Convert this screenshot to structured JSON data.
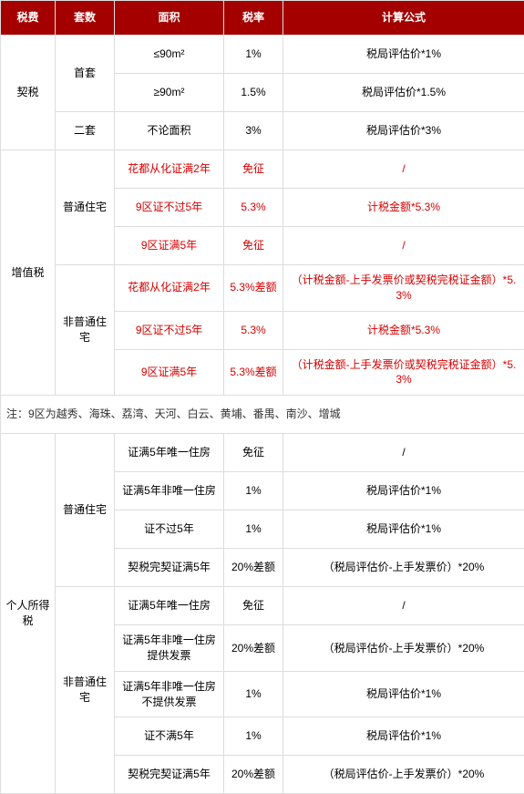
{
  "headers": [
    "税费",
    "套数",
    "面积",
    "税率",
    "计算公式"
  ],
  "colors": {
    "header_bg": "#a40000",
    "header_fg": "#ffffff",
    "border": "#dddddd",
    "red_text": "#d60000",
    "normal_text": "#333333"
  },
  "qishui": {
    "label": "契税",
    "shoutao": "首套",
    "ertao": "二套",
    "row1": {
      "area": "≤90m²",
      "rate": "1%",
      "formula": "税局评估价*1%"
    },
    "row2": {
      "area": "≥90m²",
      "rate": "1.5%",
      "formula": "税局评估价*1.5%"
    },
    "row3": {
      "area": "不论面积",
      "rate": "3%",
      "formula": "税局评估价*3%"
    }
  },
  "zengzhishui": {
    "label": "增值税",
    "putong": "普通住宅",
    "feiputong": "非普通住宅",
    "p1": {
      "area": "花都从化证满2年",
      "rate": "免征",
      "formula": "/"
    },
    "p2": {
      "area": "9区证不过5年",
      "rate": "5.3%",
      "formula": "计税金额*5.3%"
    },
    "p3": {
      "area": "9区证满5年",
      "rate": "免征",
      "formula": "/"
    },
    "f1": {
      "area": "花都从化证满2年",
      "rate": "5.3%差额",
      "formula": "（计税金额-上手发票价或契税完税证金额）*5.3%"
    },
    "f2": {
      "area": "9区证不过5年",
      "rate": "5.3%",
      "formula": "计税金额*5.3%"
    },
    "f3": {
      "area": "9区证满5年",
      "rate": "5.3%差额",
      "formula": "（计税金额-上手发票价或契税完税证金额）*5.3%"
    }
  },
  "note": "注：9区为越秀、海珠、荔湾、天河、白云、黄埔、番禺、南沙、增城",
  "geshui": {
    "label": "个人所得税",
    "putong": "普通住宅",
    "feiputong": "非普通住宅",
    "p1": {
      "area": "证满5年唯一住房",
      "rate": "免征",
      "formula": "/"
    },
    "p2": {
      "area": "证满5年非唯一住房",
      "rate": "1%",
      "formula": "税局评估价*1%"
    },
    "p3": {
      "area": "证不过5年",
      "rate": "1%",
      "formula": "税局评估价*1%"
    },
    "p4": {
      "area": "契税完契证满5年",
      "rate": "20%差额",
      "formula": "（税局评估价-上手发票价）*20%"
    },
    "f1": {
      "area": "证满5年唯一住房",
      "rate": "免征",
      "formula": "/"
    },
    "f2": {
      "area": "证满5年非唯一住房提供发票",
      "rate": "20%差额",
      "formula": "（税局评估价-上手发票价）*20%"
    },
    "f3": {
      "area": "证满5年非唯一住房不提供发票",
      "rate": "1%",
      "formula": "税局评估价*1%"
    },
    "f4": {
      "area": "证不满5年",
      "rate": "1%",
      "formula": "税局评估价*1%"
    },
    "f5": {
      "area": "契税完契证满5年",
      "rate": "20%差额",
      "formula": "（税局评估价-上手发票价）*20%"
    }
  }
}
